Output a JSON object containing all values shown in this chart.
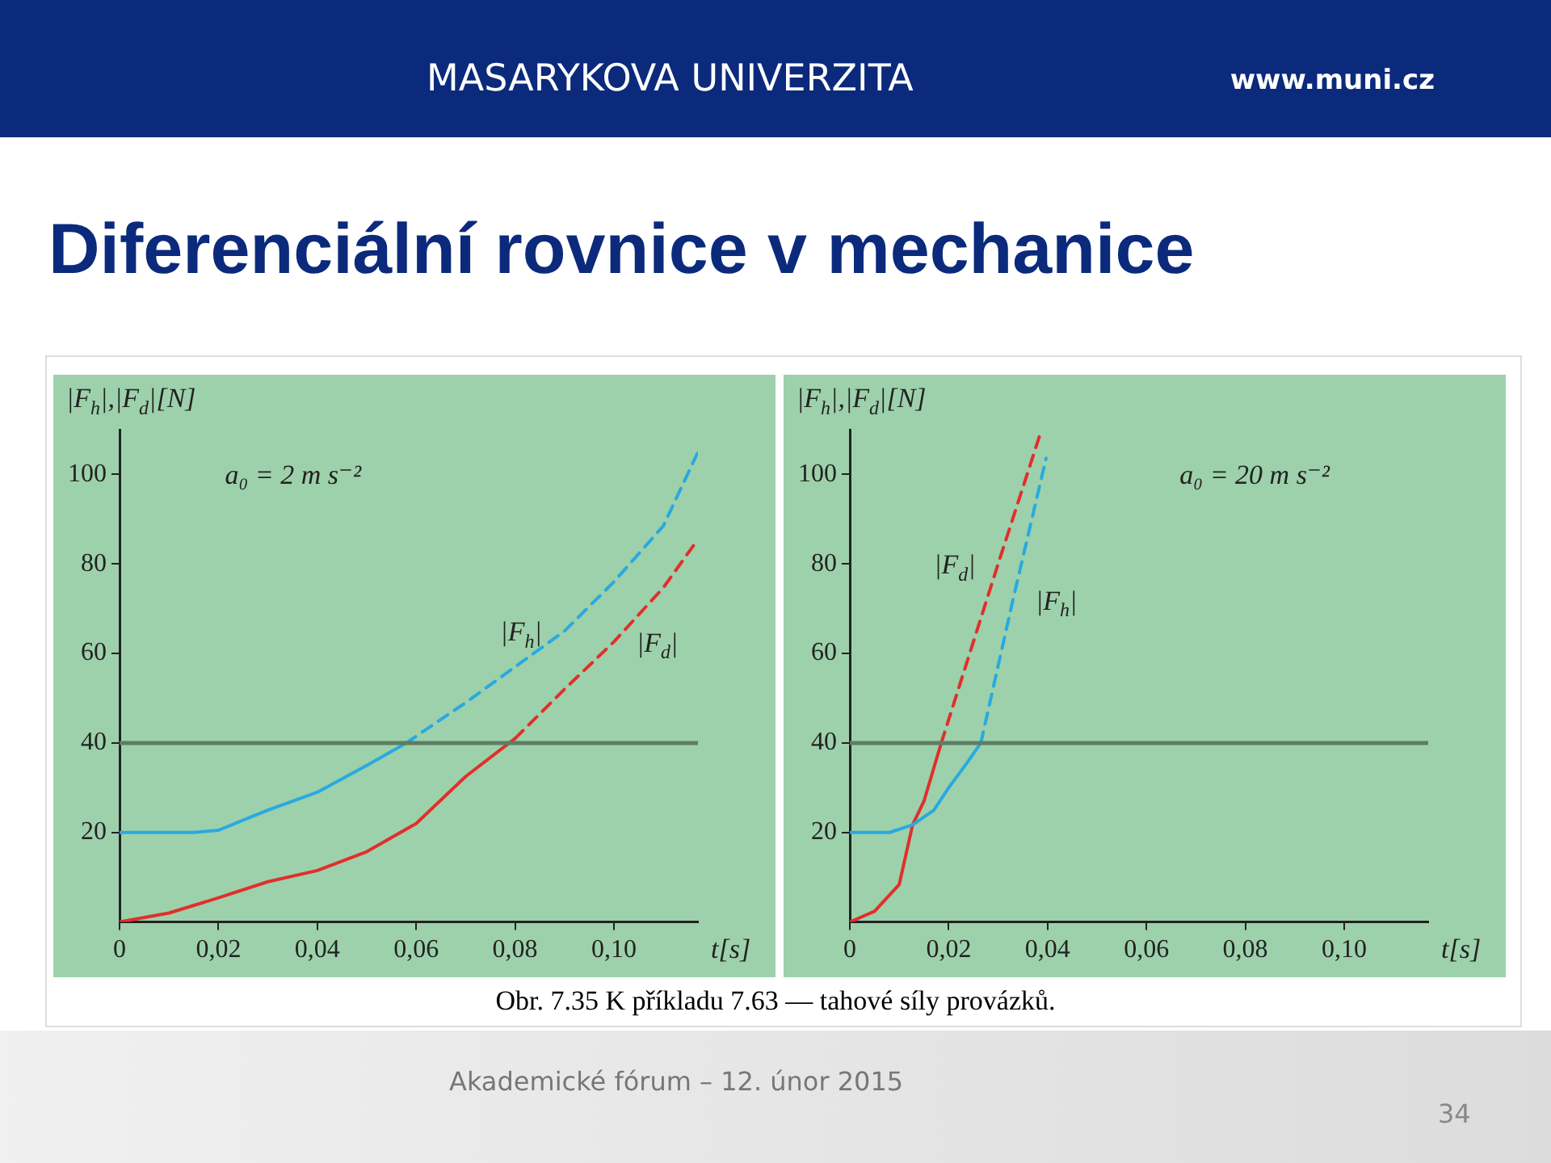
{
  "chart_data": [
    {
      "type": "line",
      "title": "Diferenciální rovnice v mechanice",
      "xlabel": "t[s]",
      "ylabel": "|F$_{h}$|,|F$_{d}$|[N]",
      "annotations": [
        "a₀ = 2 m s⁻²",
        "Obr. 7.35 K příkladu 7.63 — tahové síly provázků.",
        "MASARYKOVA UNIVERZITA",
        "www.muni.cz",
        "Akademické fórum – 12. únor 2015",
        "34"
      ],
      "xlim": [
        0,
        0.117
      ],
      "ylim": [
        0,
        110
      ],
      "xticks": [
        0,
        {
          "value": 0.02,
          "label": "0,02"
        },
        {
          "value": 0.04,
          "label": "0,04"
        },
        {
          "value": 0.06,
          "label": "0,06"
        },
        {
          "value": 0.08,
          "label": "0,08"
        },
        {
          "value": 0.1,
          "label": "0,10"
        }
      ],
      "yticks": [
        20,
        40,
        60,
        80,
        100
      ],
      "grid": false,
      "legend": false,
      "marker": "none",
      "ref_lines": [
        {
          "axis": "y",
          "value": 40,
          "color": "#5f7d63"
        }
      ],
      "series": [
        {
          "color": "#29a9e0",
          "line_style": "solid",
          "x": [
            0,
            0.01,
            0.015,
            0.02,
            0.03,
            0.04,
            0.05,
            0.058
          ],
          "values": [
            20,
            20,
            20,
            20.5,
            25,
            29,
            35,
            40
          ]
        },
        {
          "name": "|F$_{h}$|",
          "color": "#29a9e0",
          "line_style": "dashed",
          "x": [
            0.058,
            0.07,
            0.08,
            0.09,
            0.1,
            0.11,
            0.117
          ],
          "values": [
            40,
            49,
            57,
            65,
            76,
            88.5,
            105
          ]
        },
        {
          "color": "#e0302c",
          "line_style": "solid",
          "x": [
            0,
            0.01,
            0.02,
            0.03,
            0.04,
            0.05,
            0.06,
            0.07,
            0.08
          ],
          "values": [
            0,
            2,
            5.4,
            9,
            11.5,
            15.7,
            22,
            32.5,
            41
          ]
        },
        {
          "name": "|F$_{d}$|",
          "color": "#e0302c",
          "line_style": "dashed",
          "x": [
            0.08,
            0.09,
            0.1,
            0.11,
            0.117
          ],
          "values": [
            41,
            52,
            62.6,
            74.7,
            85.5
          ]
        }
      ]
    },
    {
      "type": "line",
      "xlabel": "t[s]",
      "ylabel": "|F$_{h}$|,|F$_{d}$|[N]",
      "annotations": [
        "a₀ = 20 m s⁻²"
      ],
      "xlim": [
        0,
        0.117
      ],
      "ylim": [
        0,
        110
      ],
      "xticks": [
        0,
        {
          "value": 0.02,
          "label": "0,02"
        },
        {
          "value": 0.04,
          "label": "0,04"
        },
        {
          "value": 0.06,
          "label": "0,06"
        },
        {
          "value": 0.08,
          "label": "0,08"
        },
        {
          "value": 0.1,
          "label": "0,10"
        }
      ],
      "yticks": [
        20,
        40,
        60,
        80,
        100
      ],
      "grid": false,
      "legend": false,
      "marker": "none",
      "ref_lines": [
        {
          "axis": "y",
          "value": 40,
          "color": "#5f7d63"
        }
      ],
      "series": [
        {
          "color": "#29a9e0",
          "line_style": "solid",
          "x": [
            0,
            0.005,
            0.008,
            0.0127,
            0.017,
            0.02,
            0.024,
            0.0265
          ],
          "values": [
            20,
            20,
            20,
            21.7,
            25,
            30,
            36,
            40
          ]
        },
        {
          "name": "|F$_{h}$|",
          "color": "#29a9e0",
          "line_style": "dashed",
          "x": [
            0.0265,
            0.033,
            0.0397
          ],
          "values": [
            40,
            72,
            103.6
          ]
        },
        {
          "color": "#e0302c",
          "line_style": "solid",
          "x": [
            0,
            0.005,
            0.01,
            0.0127,
            0.015,
            0.0185
          ],
          "values": [
            0,
            2.4,
            8.4,
            21.7,
            27,
            40
          ]
        },
        {
          "name": "|F$_{d}$|",
          "color": "#e0302c",
          "line_style": "dashed",
          "x": [
            0.0185,
            0.03,
            0.0385
          ],
          "values": [
            40,
            80,
            109
          ]
        }
      ]
    }
  ]
}
